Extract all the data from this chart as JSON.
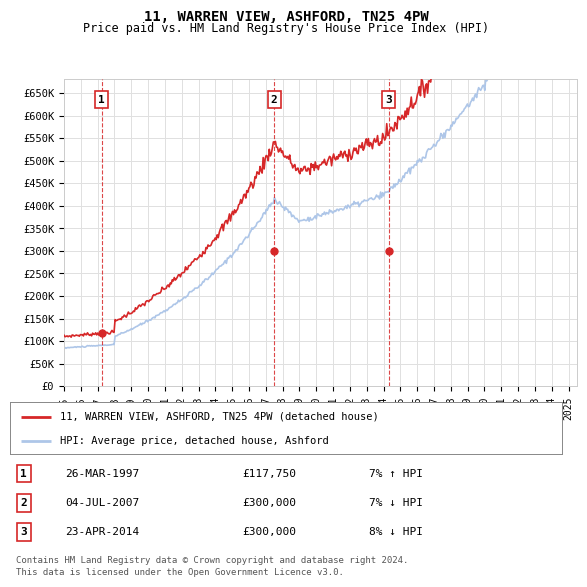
{
  "title": "11, WARREN VIEW, ASHFORD, TN25 4PW",
  "subtitle": "Price paid vs. HM Land Registry's House Price Index (HPI)",
  "ylabel_ticks": [
    "£0",
    "£50K",
    "£100K",
    "£150K",
    "£200K",
    "£250K",
    "£300K",
    "£350K",
    "£400K",
    "£450K",
    "£500K",
    "£550K",
    "£600K",
    "£650K"
  ],
  "ytick_values": [
    0,
    50000,
    100000,
    150000,
    200000,
    250000,
    300000,
    350000,
    400000,
    450000,
    500000,
    550000,
    600000,
    650000
  ],
  "ylim": [
    0,
    680000
  ],
  "xlim_start": 1995.0,
  "xlim_end": 2025.5,
  "hpi_color": "#aec6e8",
  "price_color": "#d62728",
  "marker_vline_color": "#d62728",
  "grid_color": "#e0e0e0",
  "background_color": "#ffffff",
  "transactions": [
    {
      "id": 1,
      "date_x": 1997.23,
      "price": 117750,
      "label": "1",
      "vline_x": 1997.23
    },
    {
      "id": 2,
      "date_x": 2007.5,
      "price": 300000,
      "label": "2",
      "vline_x": 2007.5
    },
    {
      "id": 3,
      "date_x": 2014.31,
      "price": 300000,
      "label": "3",
      "vline_x": 2014.31
    }
  ],
  "legend_price_label": "11, WARREN VIEW, ASHFORD, TN25 4PW (detached house)",
  "legend_hpi_label": "HPI: Average price, detached house, Ashford",
  "table_rows": [
    {
      "id": "1",
      "date": "26-MAR-1997",
      "price": "£117,750",
      "hpi": "7% ↑ HPI"
    },
    {
      "id": "2",
      "date": "04-JUL-2007",
      "price": "£300,000",
      "hpi": "7% ↓ HPI"
    },
    {
      "id": "3",
      "date": "23-APR-2014",
      "price": "£300,000",
      "hpi": "8% ↓ HPI"
    }
  ],
  "footnote1": "Contains HM Land Registry data © Crown copyright and database right 2024.",
  "footnote2": "This data is licensed under the Open Government Licence v3.0.",
  "xticklabels": [
    "1995",
    "1996",
    "1997",
    "1998",
    "1999",
    "2000",
    "2001",
    "2002",
    "2003",
    "2004",
    "2005",
    "2006",
    "2007",
    "2008",
    "2009",
    "2010",
    "2011",
    "2012",
    "2013",
    "2014",
    "2015",
    "2016",
    "2017",
    "2018",
    "2019",
    "2020",
    "2021",
    "2022",
    "2023",
    "2024",
    "2025"
  ]
}
